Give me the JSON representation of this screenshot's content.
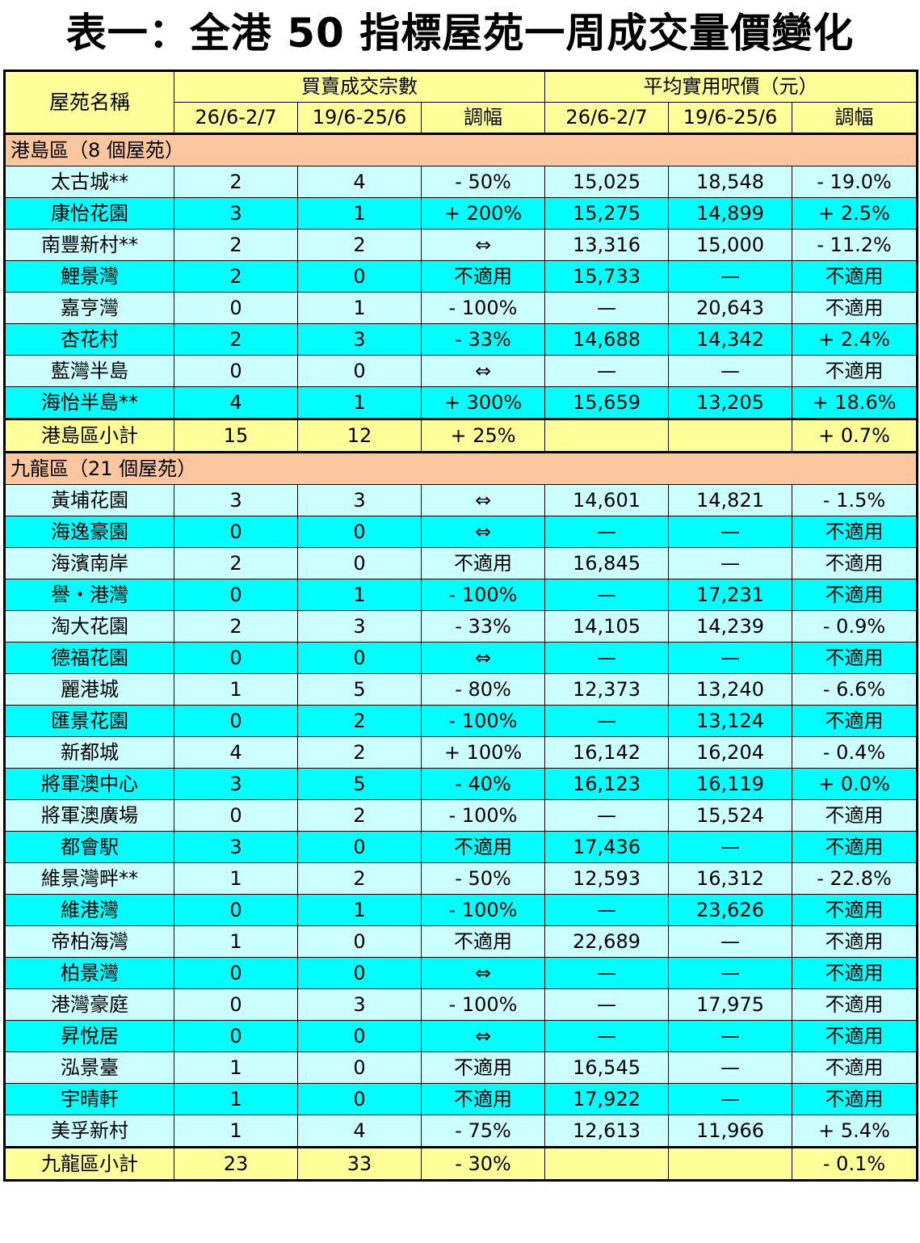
{
  "title": "表一：全港 50 指標屋苑一周成交量價變化",
  "header": {
    "name_col": "屋苑名稱",
    "volume_group": "買賣成交宗數",
    "price_group": "平均實用呎價（元）",
    "period_current": "26/6-2/7",
    "period_previous": "19/6-25/6",
    "change": "調幅"
  },
  "districts": [
    {
      "label": "港島區（8 個屋苑）",
      "rows": [
        {
          "name": "太古城**",
          "vol_cur": "2",
          "vol_prev": "4",
          "vol_chg": "- 50%",
          "price_cur": "15,025",
          "price_prev": "18,548",
          "price_chg": "- 19.0%"
        },
        {
          "name": "康怡花園",
          "vol_cur": "3",
          "vol_prev": "1",
          "vol_chg": "+ 200%",
          "price_cur": "15,275",
          "price_prev": "14,899",
          "price_chg": "+ 2.5%"
        },
        {
          "name": "南豐新村**",
          "vol_cur": "2",
          "vol_prev": "2",
          "vol_chg": "⇔",
          "price_cur": "13,316",
          "price_prev": "15,000",
          "price_chg": "- 11.2%"
        },
        {
          "name": "鯉景灣",
          "vol_cur": "2",
          "vol_prev": "0",
          "vol_chg": "不適用",
          "price_cur": "15,733",
          "price_prev": "—",
          "price_chg": "不適用"
        },
        {
          "name": "嘉亨灣",
          "vol_cur": "0",
          "vol_prev": "1",
          "vol_chg": "- 100%",
          "price_cur": "—",
          "price_prev": "20,643",
          "price_chg": "不適用"
        },
        {
          "name": "杏花村",
          "vol_cur": "2",
          "vol_prev": "3",
          "vol_chg": "- 33%",
          "price_cur": "14,688",
          "price_prev": "14,342",
          "price_chg": "+ 2.4%"
        },
        {
          "name": "藍灣半島",
          "vol_cur": "0",
          "vol_prev": "0",
          "vol_chg": "⇔",
          "price_cur": "—",
          "price_prev": "—",
          "price_chg": "不適用"
        },
        {
          "name": "海怡半島**",
          "vol_cur": "4",
          "vol_prev": "1",
          "vol_chg": "+ 300%",
          "price_cur": "15,659",
          "price_prev": "13,205",
          "price_chg": "+ 18.6%"
        }
      ],
      "subtotal": {
        "name": "港島區小計",
        "vol_cur": "15",
        "vol_prev": "12",
        "vol_chg": "+ 25%",
        "price_cur": "",
        "price_prev": "",
        "price_chg": "+ 0.7%"
      }
    },
    {
      "label": "九龍區（21 個屋苑）",
      "rows": [
        {
          "name": "黃埔花園",
          "vol_cur": "3",
          "vol_prev": "3",
          "vol_chg": "⇔",
          "price_cur": "14,601",
          "price_prev": "14,821",
          "price_chg": "- 1.5%"
        },
        {
          "name": "海逸豪園",
          "vol_cur": "0",
          "vol_prev": "0",
          "vol_chg": "⇔",
          "price_cur": "—",
          "price_prev": "—",
          "price_chg": "不適用"
        },
        {
          "name": "海濱南岸",
          "vol_cur": "2",
          "vol_prev": "0",
          "vol_chg": "不適用",
          "price_cur": "16,845",
          "price_prev": "—",
          "price_chg": "不適用"
        },
        {
          "name": "譽・港灣",
          "vol_cur": "0",
          "vol_prev": "1",
          "vol_chg": "- 100%",
          "price_cur": "—",
          "price_prev": "17,231",
          "price_chg": "不適用"
        },
        {
          "name": "淘大花園",
          "vol_cur": "2",
          "vol_prev": "3",
          "vol_chg": "- 33%",
          "price_cur": "14,105",
          "price_prev": "14,239",
          "price_chg": "- 0.9%"
        },
        {
          "name": "德福花園",
          "vol_cur": "0",
          "vol_prev": "0",
          "vol_chg": "⇔",
          "price_cur": "—",
          "price_prev": "—",
          "price_chg": "不適用"
        },
        {
          "name": "麗港城",
          "vol_cur": "1",
          "vol_prev": "5",
          "vol_chg": "- 80%",
          "price_cur": "12,373",
          "price_prev": "13,240",
          "price_chg": "- 6.6%"
        },
        {
          "name": "匯景花園",
          "vol_cur": "0",
          "vol_prev": "2",
          "vol_chg": "- 100%",
          "price_cur": "—",
          "price_prev": "13,124",
          "price_chg": "不適用"
        },
        {
          "name": "新都城",
          "vol_cur": "4",
          "vol_prev": "2",
          "vol_chg": "+ 100%",
          "price_cur": "16,142",
          "price_prev": "16,204",
          "price_chg": "- 0.4%"
        },
        {
          "name": "將軍澳中心",
          "vol_cur": "3",
          "vol_prev": "5",
          "vol_chg": "- 40%",
          "price_cur": "16,123",
          "price_prev": "16,119",
          "price_chg": "+ 0.0%"
        },
        {
          "name": "將軍澳廣場",
          "vol_cur": "0",
          "vol_prev": "2",
          "vol_chg": "- 100%",
          "price_cur": "—",
          "price_prev": "15,524",
          "price_chg": "不適用"
        },
        {
          "name": "都會駅",
          "vol_cur": "3",
          "vol_prev": "0",
          "vol_chg": "不適用",
          "price_cur": "17,436",
          "price_prev": "—",
          "price_chg": "不適用"
        },
        {
          "name": "維景灣畔**",
          "vol_cur": "1",
          "vol_prev": "2",
          "vol_chg": "- 50%",
          "price_cur": "12,593",
          "price_prev": "16,312",
          "price_chg": "- 22.8%"
        },
        {
          "name": "維港灣",
          "vol_cur": "0",
          "vol_prev": "1",
          "vol_chg": "- 100%",
          "price_cur": "—",
          "price_prev": "23,626",
          "price_chg": "不適用"
        },
        {
          "name": "帝柏海灣",
          "vol_cur": "1",
          "vol_prev": "0",
          "vol_chg": "不適用",
          "price_cur": "22,689",
          "price_prev": "—",
          "price_chg": "不適用"
        },
        {
          "name": "柏景灣",
          "vol_cur": "0",
          "vol_prev": "0",
          "vol_chg": "⇔",
          "price_cur": "—",
          "price_prev": "—",
          "price_chg": "不適用"
        },
        {
          "name": "港灣豪庭",
          "vol_cur": "0",
          "vol_prev": "3",
          "vol_chg": "- 100%",
          "price_cur": "—",
          "price_prev": "17,975",
          "price_chg": "不適用"
        },
        {
          "name": "昇悅居",
          "vol_cur": "0",
          "vol_prev": "0",
          "vol_chg": "⇔",
          "price_cur": "—",
          "price_prev": "—",
          "price_chg": "不適用"
        },
        {
          "name": "泓景臺",
          "vol_cur": "1",
          "vol_prev": "0",
          "vol_chg": "不適用",
          "price_cur": "16,545",
          "price_prev": "—",
          "price_chg": "不適用"
        },
        {
          "name": "宇晴軒",
          "vol_cur": "1",
          "vol_prev": "0",
          "vol_chg": "不適用",
          "price_cur": "17,922",
          "price_prev": "—",
          "price_chg": "不適用"
        },
        {
          "name": "美孚新村",
          "vol_cur": "1",
          "vol_prev": "4",
          "vol_chg": "- 75%",
          "price_cur": "12,613",
          "price_prev": "11,966",
          "price_chg": "+ 5.4%"
        }
      ],
      "subtotal": {
        "name": "九龍區小計",
        "vol_cur": "23",
        "vol_prev": "33",
        "vol_chg": "- 30%",
        "price_cur": "",
        "price_prev": "",
        "price_chg": "- 0.1%"
      }
    }
  ],
  "colors": {
    "header_bg": "#ffff99",
    "district_bg": "#fcc79f",
    "row_light": "#ccffff",
    "row_cyan": "#00ffff",
    "subtotal_bg": "#ffff99"
  }
}
